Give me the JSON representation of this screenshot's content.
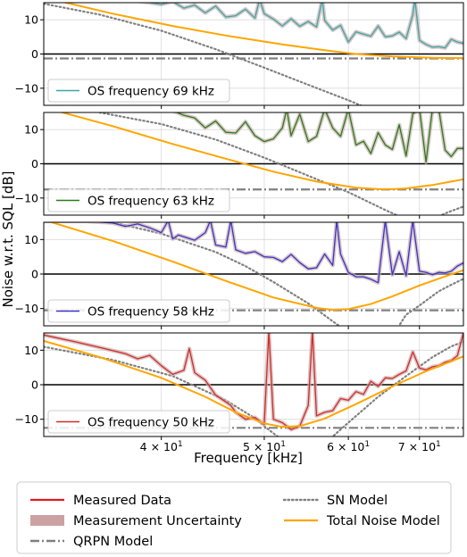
{
  "chart_data": {
    "type": "line",
    "xlabel": "Frequency [kHz]",
    "ylabel": "Noise w.r.t. SQL [dB]",
    "x_scale": "log",
    "xlim": [
      31,
      77
    ],
    "ylim": [
      -15,
      15
    ],
    "x_ticks": [
      {
        "value": 40,
        "base": "4 × 10",
        "exp": "1"
      },
      {
        "value": 50,
        "base": "5 × 10",
        "exp": "1"
      },
      {
        "value": 60,
        "base": "6 × 10",
        "exp": "1"
      },
      {
        "value": 70,
        "base": "7 × 10",
        "exp": "1"
      }
    ],
    "y_ticks": [
      {
        "value": 10,
        "label": "10"
      },
      {
        "value": 0,
        "label": "0"
      },
      {
        "value": -10,
        "label": "−10"
      }
    ],
    "grid": true,
    "legend": {
      "placement": "bottom-outside",
      "entries": [
        {
          "label": "Measured Data",
          "style": "line",
          "color": "#e41a1c"
        },
        {
          "label": "Measurement Uncertainty",
          "style": "patch",
          "color": "#cca1a2"
        },
        {
          "label": "QRPN Model",
          "style": "dashdot",
          "color": "#808080"
        },
        {
          "label": "SN Model",
          "style": "dotted",
          "color": "#808080"
        },
        {
          "label": "Total Noise Model",
          "style": "line",
          "color": "#ffa500"
        }
      ]
    },
    "panels": [
      {
        "legend_label": "OS frequency 69 kHz",
        "color": "#3ea6a6",
        "qrpn": -1.3,
        "total_model": {
          "x": [
            31,
            36,
            41,
            46,
            52,
            57,
            61,
            66,
            72,
            77
          ],
          "y": [
            16.5,
            11.8,
            8.2,
            5.4,
            2.8,
            1.1,
            0.0,
            -0.7,
            -1.1,
            -1.2
          ]
        },
        "sn_model": {
          "x": [
            31,
            35,
            40,
            45,
            50,
            55,
            60,
            65
          ],
          "y": [
            14.7,
            11.5,
            6.8,
            1.4,
            -4.0,
            -9.0,
            -13.5,
            -18
          ]
        },
        "measured": {
          "x": [
            31,
            38,
            40,
            41,
            42,
            43,
            44,
            45,
            46,
            47,
            48,
            49,
            49.5,
            50,
            51,
            52,
            53,
            54,
            55,
            56,
            56.7,
            57,
            58,
            59,
            60,
            61,
            62,
            63,
            64,
            65,
            66,
            67,
            68,
            69,
            69.3,
            70,
            71,
            72,
            73,
            74,
            75,
            76,
            77
          ],
          "y": [
            15.5,
            15.5,
            14.5,
            15.3,
            13.4,
            14.3,
            12.0,
            14.0,
            10.8,
            11.2,
            13.1,
            10.5,
            16,
            11.8,
            10.2,
            8.2,
            10.3,
            8.1,
            9.5,
            7.9,
            16,
            9.8,
            7.0,
            8.4,
            3.5,
            6.5,
            5.8,
            5.2,
            8.2,
            5.0,
            5.3,
            6.4,
            4.5,
            11.5,
            16,
            4.0,
            2.8,
            2.0,
            2.1,
            1.8,
            4.3,
            3.5,
            3.1
          ]
        }
      },
      {
        "legend_label": "OS frequency 63 kHz",
        "color": "#2c7a1a",
        "qrpn": -7.5,
        "total_model": {
          "x": [
            31,
            36,
            41,
            46,
            51,
            56,
            61,
            64,
            66,
            68,
            72,
            77
          ],
          "y": [
            16.5,
            11.0,
            5.8,
            1.5,
            -2.3,
            -5.2,
            -7.0,
            -7.4,
            -7.4,
            -7.2,
            -6.2,
            -4.5
          ]
        },
        "sn_model": {
          "x": [
            35,
            40,
            45,
            50,
            55,
            60,
            65,
            70,
            74,
            75,
            77
          ],
          "y": [
            15,
            11.6,
            7.1,
            1.8,
            -3.5,
            -8.3,
            -13.5,
            -18,
            -14.5,
            -13.8,
            -12.5
          ]
        },
        "measured": {
          "x": [
            41,
            42,
            43,
            44,
            45,
            46,
            47,
            48,
            49,
            50,
            51,
            52,
            52.5,
            53,
            54,
            55,
            56,
            57,
            58,
            59,
            60,
            61,
            62,
            63,
            64,
            65,
            66,
            67,
            68,
            69,
            70,
            71,
            72,
            73,
            74,
            75,
            76,
            77
          ],
          "y": [
            15.5,
            14.2,
            13.4,
            10.5,
            12.5,
            9.2,
            9.0,
            12.3,
            8.2,
            6.5,
            7.3,
            10.5,
            16,
            8.2,
            14.5,
            6.5,
            8.0,
            16,
            10.5,
            8.0,
            16,
            5.5,
            6.6,
            3.0,
            9.1,
            5.5,
            4.2,
            11.4,
            2.3,
            14.6,
            16,
            0.5,
            16,
            16,
            4.0,
            2.1,
            4.5,
            4.5
          ]
        }
      },
      {
        "legend_label": "OS frequency 58 kHz",
        "color": "#3d32c9",
        "qrpn": -10.5,
        "total_model": {
          "x": [
            31,
            36,
            41,
            46,
            51,
            56,
            58,
            60,
            63,
            66,
            70,
            74,
            77
          ],
          "y": [
            15.7,
            9.6,
            3.6,
            -2.0,
            -6.8,
            -9.8,
            -10.4,
            -10.2,
            -8.7,
            -6.5,
            -3.3,
            -0.7,
            1.1
          ]
        },
        "sn_model": {
          "x": [
            36,
            40,
            45,
            48,
            51,
            55,
            60,
            66,
            68,
            70,
            73,
            75,
            77
          ],
          "y": [
            15,
            11.7,
            6.4,
            2.3,
            -2.3,
            -8.5,
            -17,
            -18,
            -11.8,
            -9.1,
            -5.0,
            -3.1,
            -1.4
          ]
        },
        "measured": {
          "x": [
            31,
            34,
            36,
            37,
            38,
            39,
            40,
            40.6,
            41,
            41.5,
            42,
            43,
            44,
            44.5,
            45,
            46,
            46.5,
            47,
            48,
            49,
            50,
            51,
            52,
            53,
            54,
            55,
            56,
            57,
            58,
            58.5,
            59,
            60,
            61,
            62,
            63,
            64,
            65,
            66,
            67,
            68,
            69,
            70,
            71,
            72,
            73,
            74,
            75,
            76,
            77
          ],
          "y": [
            15.3,
            15.3,
            14.8,
            13.8,
            14.5,
            13.4,
            12.0,
            15.5,
            10.2,
            11.3,
            10.8,
            9.8,
            12.0,
            15.5,
            8.4,
            7.8,
            15.5,
            7.0,
            6.0,
            6.5,
            5.0,
            4.8,
            3.6,
            5.7,
            3.3,
            1.5,
            1.8,
            5.8,
            2.5,
            15.5,
            5.8,
            0.5,
            -0.8,
            -0.8,
            -1.5,
            -2.5,
            15.5,
            -0.2,
            6.5,
            -0.5,
            15.5,
            0.8,
            0.5,
            -0.2,
            0.5,
            0.3,
            0.8,
            2.3,
            3.2
          ]
        }
      },
      {
        "legend_label": "OS frequency 50 kHz",
        "color": "#d42a2a",
        "qrpn": -12.5,
        "total_model": {
          "x": [
            31,
            35,
            40,
            44,
            47,
            50,
            52,
            54,
            57,
            61,
            66,
            71,
            77
          ],
          "y": [
            12.7,
            8.0,
            2.0,
            -3.5,
            -8.0,
            -11.2,
            -12.2,
            -12.0,
            -9.8,
            -5.6,
            -0.5,
            3.9,
            8.2
          ]
        },
        "sn_model": {
          "x": [
            31,
            36,
            41,
            46,
            49,
            50,
            54,
            56.5,
            58,
            60,
            64,
            68,
            72,
            75,
            77
          ],
          "y": [
            11,
            7.2,
            2.5,
            -4.5,
            -9.7,
            -12.0,
            -20,
            -18,
            -15.0,
            -11.0,
            -3.5,
            2.5,
            8.0,
            11.1,
            12.5
          ]
        },
        "measured": {
          "x": [
            31,
            33,
            35,
            37,
            38,
            39,
            40,
            41,
            42,
            42.5,
            43,
            44,
            45,
            46,
            46.5,
            47,
            48,
            49,
            50,
            50.5,
            51,
            52,
            53,
            54,
            55,
            55.5,
            56,
            57,
            58,
            59,
            60,
            61,
            62,
            63,
            64,
            65,
            66,
            67,
            68,
            69,
            70,
            71,
            72,
            73,
            74,
            75,
            76,
            77
          ],
          "y": [
            14.4,
            12.6,
            10.8,
            9.0,
            7.5,
            8.5,
            5.5,
            3.0,
            4.2,
            10.5,
            3.5,
            1.3,
            -3.0,
            -5.0,
            -6.0,
            -8.0,
            -10.0,
            -9.5,
            -11.5,
            15.5,
            -10.0,
            -11.0,
            -13.0,
            -12.0,
            -6.0,
            15.5,
            -9.0,
            -8.0,
            -7.5,
            -4.0,
            -4.5,
            -2.0,
            -2.8,
            1.0,
            -0.5,
            2.0,
            1.8,
            3.0,
            4.0,
            9.5,
            4.8,
            4.3,
            5.2,
            5.5,
            6.5,
            7.0,
            8.4,
            15.0
          ]
        }
      }
    ]
  }
}
